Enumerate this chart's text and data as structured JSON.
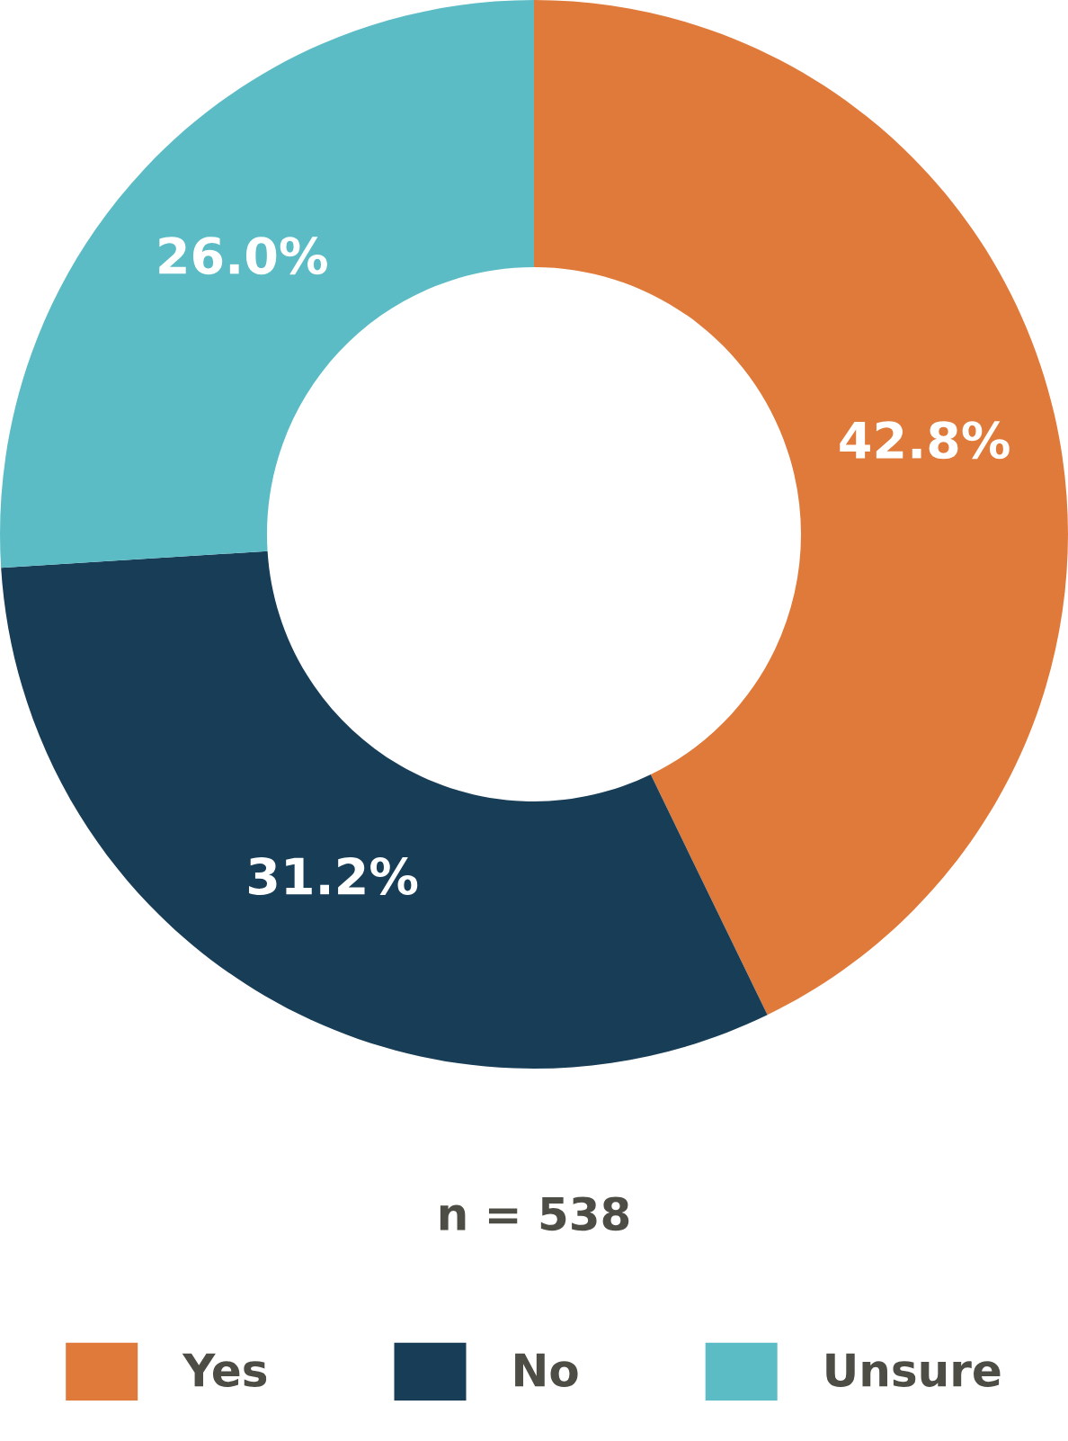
{
  "chart_data": {
    "type": "donut",
    "categories": [
      "Yes",
      "No",
      "Unsure"
    ],
    "values": [
      42.8,
      31.2,
      26.0
    ],
    "colors": [
      "#e07a3a",
      "#183d57",
      "#5bbcc6"
    ],
    "value_labels": [
      "42.8%",
      "31.2%",
      "26.0%"
    ],
    "annotations": [
      "n = 538"
    ],
    "legend": "bottom"
  }
}
